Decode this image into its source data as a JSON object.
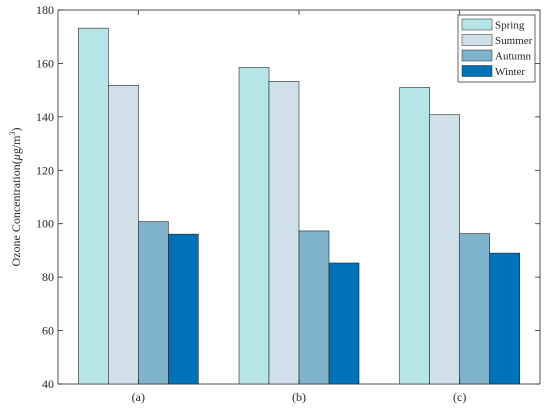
{
  "chart_data": {
    "type": "bar",
    "title": "",
    "xlabel": "",
    "ylabel": "Ozone Concentration(μg/m³)",
    "ylabel_parts": {
      "main": "Ozone Concentration(",
      "mu": "μ",
      "unit": "g/m",
      "sup": "3",
      "close": ")"
    },
    "ylim": [
      40,
      180
    ],
    "yticks": [
      40,
      60,
      80,
      100,
      120,
      140,
      160,
      180
    ],
    "grid": false,
    "legend_position": "top-right",
    "categories": [
      "(a)",
      "(b)",
      "(c)"
    ],
    "series": [
      {
        "name": "Spring",
        "color": "#b7e4e6",
        "values": [
          173.2,
          158.5,
          151.0
        ]
      },
      {
        "name": "Summer",
        "color": "#cfe0e8",
        "values": [
          151.8,
          153.3,
          140.8
        ]
      },
      {
        "name": "Autumn",
        "color": "#7fb3cb",
        "values": [
          100.8,
          97.3,
          96.3
        ]
      },
      {
        "name": "Winter",
        "color": "#0072b8",
        "values": [
          96.1,
          85.3,
          89.0
        ]
      }
    ]
  }
}
